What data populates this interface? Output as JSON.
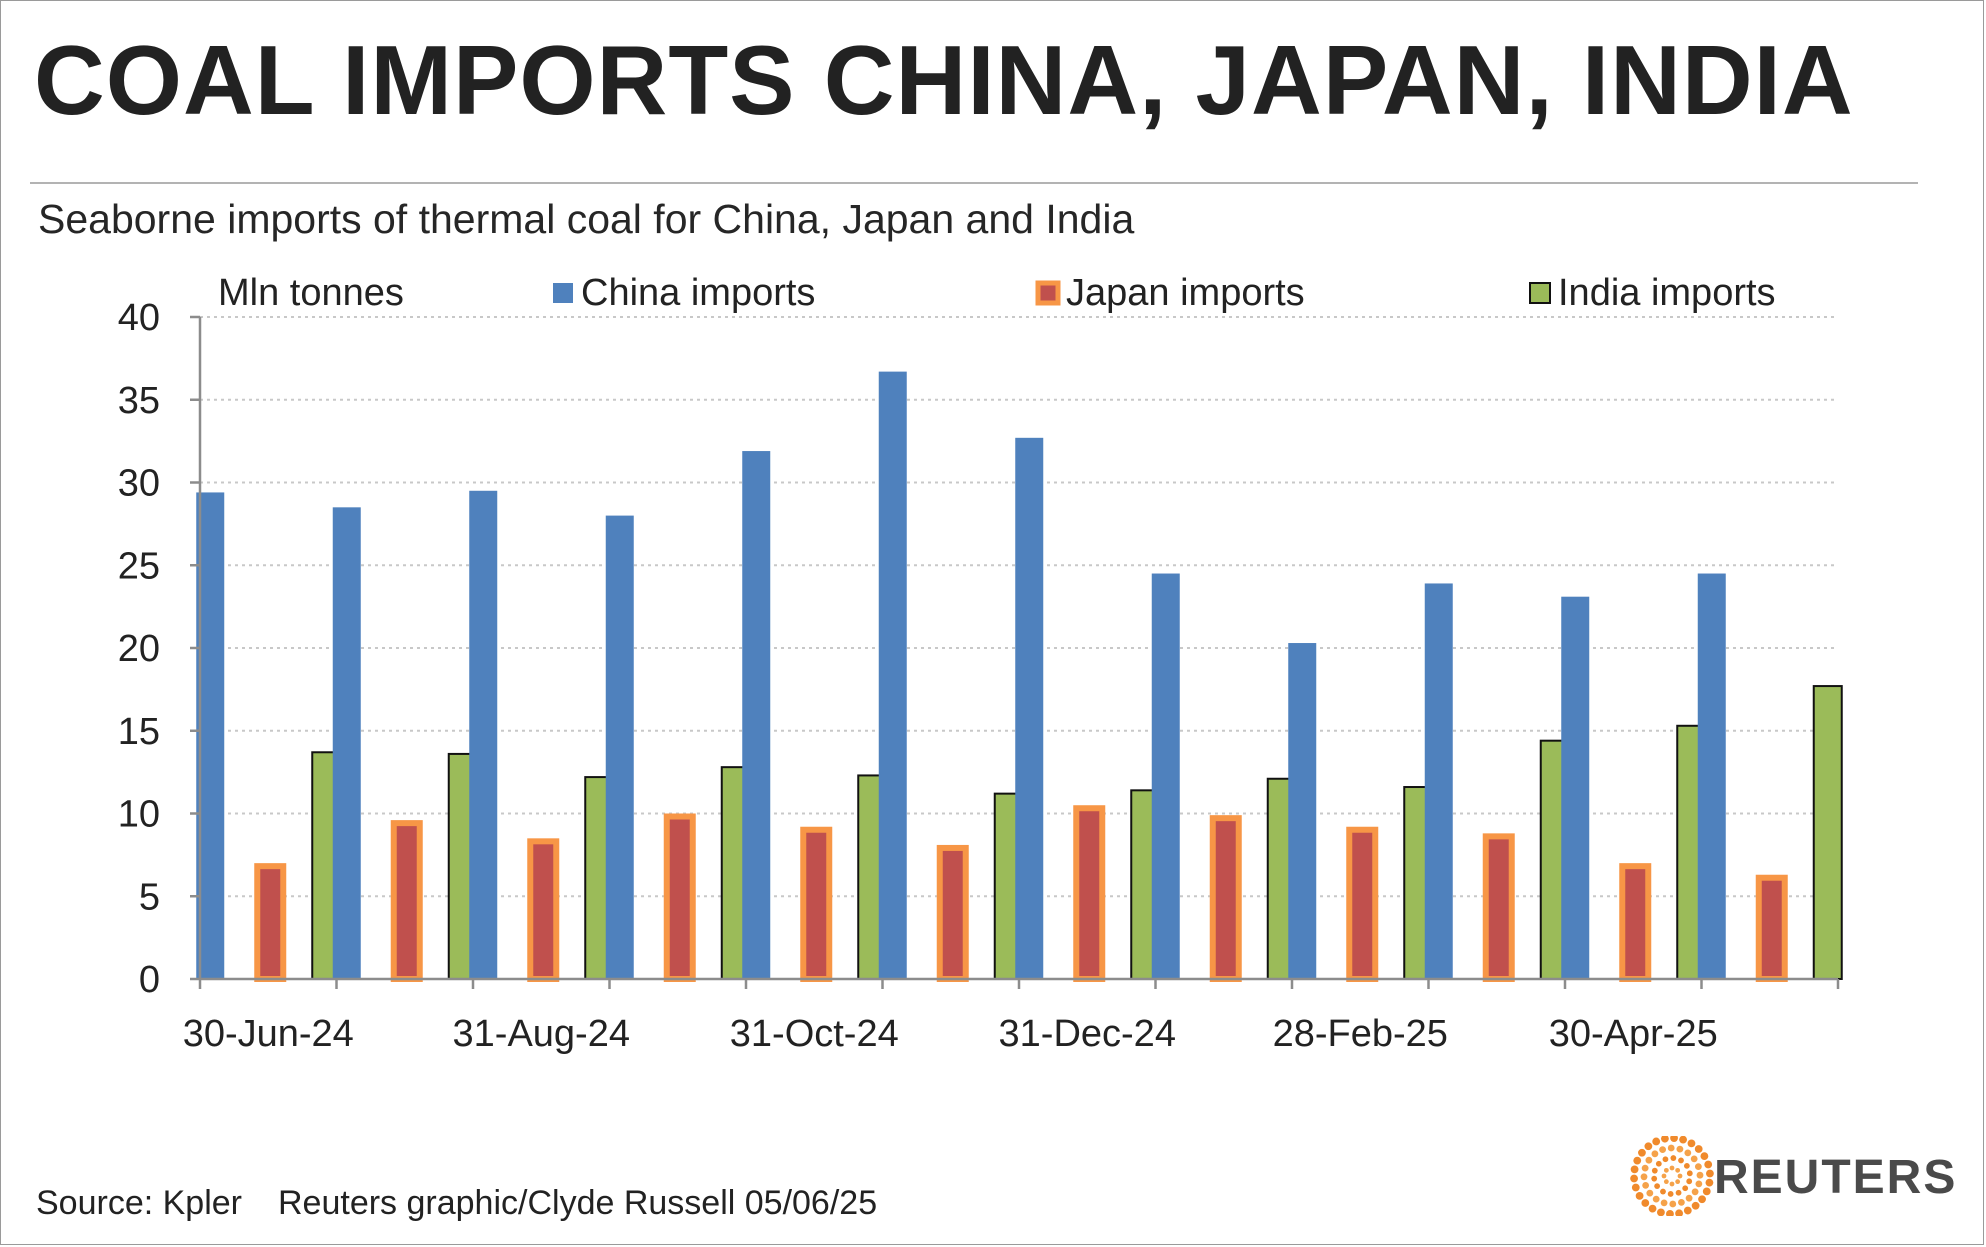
{
  "header": {
    "title": "COAL IMPORTS CHINA, JAPAN, INDIA",
    "subtitle": "Seaborne imports of thermal coal for China, Japan and India"
  },
  "footer": {
    "source": "Source: Kpler",
    "credit": "Reuters graphic/Clyde Russell 05/06/25"
  },
  "logo": {
    "text": "REUTERS",
    "icon": "reuters-dot-sphere-icon"
  },
  "colors": {
    "china": "#4F81BD",
    "japan_fill": "#C0504D",
    "japan_border": "#F79646",
    "india": "#9BBB59",
    "grid": "#c8c8c8",
    "axis": "#8c8c8c"
  },
  "chart_data": {
    "type": "bar",
    "unit_label": "Mln tonnes",
    "ylim": [
      0,
      40
    ],
    "yticks": [
      0,
      5,
      10,
      15,
      20,
      25,
      30,
      35,
      40
    ],
    "ytick_labels": [
      "0",
      "5",
      "10",
      "15",
      "20",
      "25",
      "30",
      "35",
      "40"
    ],
    "grid": true,
    "legend_position": "top",
    "categories": [
      "Jun-24",
      "Jul-24",
      "Aug-24",
      "Sep-24",
      "Oct-24",
      "Nov-24",
      "Dec-24",
      "Jan-25",
      "Feb-25",
      "Mar-25",
      "Apr-25",
      "May-25"
    ],
    "xtick_labels": [
      "30-Jun-24",
      "31-Aug-24",
      "31-Oct-24",
      "31-Dec-24",
      "28-Feb-25",
      "30-Apr-25"
    ],
    "xtick_label_category_index": [
      0,
      2,
      4,
      6,
      8,
      10
    ],
    "series": [
      {
        "name": "China imports",
        "values": [
          29.4,
          28.5,
          29.5,
          28.0,
          31.9,
          36.7,
          32.7,
          24.5,
          20.3,
          23.9,
          23.1,
          24.5
        ]
      },
      {
        "name": "Japan imports",
        "values": [
          7.0,
          9.6,
          8.5,
          10.0,
          9.2,
          8.1,
          10.5,
          9.9,
          9.2,
          8.8,
          7.0,
          6.3
        ]
      },
      {
        "name": "India imports",
        "values": [
          13.7,
          13.6,
          12.2,
          12.8,
          12.3,
          11.2,
          11.4,
          12.1,
          11.6,
          14.4,
          15.3,
          17.7
        ]
      }
    ]
  }
}
